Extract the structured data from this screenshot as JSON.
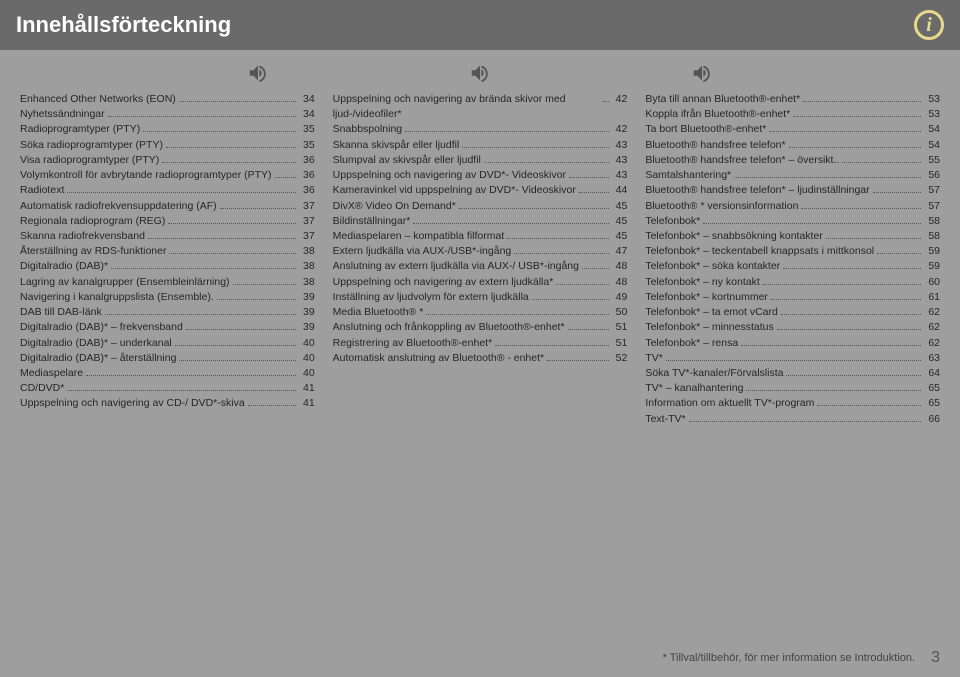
{
  "header": {
    "title": "Innehållsförteckning"
  },
  "columns": [
    [
      {
        "label": "Enhanced Other Networks (EON)",
        "page": "34"
      },
      {
        "label": "Nyhetssändningar",
        "page": "34"
      },
      {
        "label": "Radioprogramtyper (PTY)",
        "page": "35"
      },
      {
        "label": "Söka radioprogramtyper (PTY)",
        "page": "35"
      },
      {
        "label": "Visa radioprogramtyper (PTY)",
        "page": "36"
      },
      {
        "label": "Volymkontroll för avbrytande radioprogramtyper (PTY)",
        "page": "36"
      },
      {
        "label": "Radiotext",
        "page": "36"
      },
      {
        "label": "Automatisk radiofrekvensuppdatering (AF)",
        "page": "37"
      },
      {
        "label": "Regionala radioprogram (REG)",
        "page": "37"
      },
      {
        "label": "Skanna radiofrekvensband",
        "page": "37"
      },
      {
        "label": "Återställning av RDS-funktioner",
        "page": "38"
      },
      {
        "label": "Digitalradio (DAB)*",
        "page": "38"
      },
      {
        "label": "Lagring av kanalgrupper (Ensembleinlärning)",
        "page": "38"
      },
      {
        "label": "Navigering i kanalgruppslista (Ensemble).",
        "page": "39"
      },
      {
        "label": "DAB till DAB-länk",
        "page": "39"
      },
      {
        "label": "Digitalradio (DAB)* – frekvensband",
        "page": "39"
      },
      {
        "label": "Digitalradio (DAB)* – underkanal",
        "page": "40"
      },
      {
        "label": "Digitalradio (DAB)* – återställning",
        "page": "40"
      },
      {
        "label": "Mediaspelare",
        "page": "40"
      },
      {
        "label": "CD/DVD*",
        "page": "41"
      },
      {
        "label": "Uppspelning och navigering av CD-/ DVD*-skiva",
        "page": "41"
      }
    ],
    [
      {
        "label": "Uppspelning och navigering av brända skivor med ljud-/videofiler*",
        "page": "42"
      },
      {
        "label": "Snabbspolning",
        "page": "42"
      },
      {
        "label": "Skanna skivspår eller ljudfil",
        "page": "43"
      },
      {
        "label": "Slumpval av skivspår eller ljudfil",
        "page": "43"
      },
      {
        "label": "Uppspelning och navigering av DVD*- Videoskivor",
        "page": "43"
      },
      {
        "label": "Kameravinkel vid uppspelning av DVD*- Videoskivor",
        "page": "44"
      },
      {
        "label": "DivX® Video On Demand*",
        "page": "45"
      },
      {
        "label": "Bildinställningar*",
        "page": "45"
      },
      {
        "label": "Mediaspelaren – kompatibla filformat",
        "page": "45"
      },
      {
        "label": "Extern ljudkälla via AUX-/USB*-ingång",
        "page": "47"
      },
      {
        "label": "Anslutning av extern ljudkälla via AUX-/ USB*-ingång",
        "page": "48"
      },
      {
        "label": "Uppspelning och navigering av extern ljudkälla*",
        "page": "48"
      },
      {
        "label": "Inställning av ljudvolym för extern ljudkälla",
        "page": "49"
      },
      {
        "label": "Media Bluetooth® *",
        "page": "50"
      },
      {
        "label": "Anslutning och frånkoppling av Bluetooth®-enhet*",
        "page": "51"
      },
      {
        "label": "Registrering av Bluetooth®-enhet*",
        "page": "51"
      },
      {
        "label": "Automatisk anslutning av Bluetooth® - enhet*",
        "page": "52"
      }
    ],
    [
      {
        "label": "Byta till annan Bluetooth®-enhet*",
        "page": "53"
      },
      {
        "label": "Koppla ifrån Bluetooth®-enhet*",
        "page": "53"
      },
      {
        "label": "Ta bort Bluetooth®-enhet*",
        "page": "54"
      },
      {
        "label": "Bluetooth® handsfree telefon*",
        "page": "54"
      },
      {
        "label": "Bluetooth® handsfree telefon* – översikt..",
        "page": "55"
      },
      {
        "label": "Samtalshantering*",
        "page": "56"
      },
      {
        "label": "Bluetooth® handsfree telefon* – ljudinställningar",
        "page": "57"
      },
      {
        "label": "Bluetooth® * versionsinformation",
        "page": "57"
      },
      {
        "label": "Telefonbok*",
        "page": "58"
      },
      {
        "label": "Telefonbok* – snabbsökning kontakter",
        "page": "58"
      },
      {
        "label": "Telefonbok* – teckentabell knappsats i mittkonsol",
        "page": "59"
      },
      {
        "label": "Telefonbok* – söka kontakter",
        "page": "59"
      },
      {
        "label": "Telefonbok* – ny kontakt",
        "page": "60"
      },
      {
        "label": "Telefonbok* – kortnummer",
        "page": "61"
      },
      {
        "label": "Telefonbok* – ta emot vCard",
        "page": "62"
      },
      {
        "label": "Telefonbok* – minnesstatus",
        "page": "62"
      },
      {
        "label": "Telefonbok* – rensa",
        "page": "62"
      },
      {
        "label": "TV*",
        "page": "63"
      },
      {
        "label": "Söka TV*-kanaler/Förvalslista",
        "page": "64"
      },
      {
        "label": "TV* – kanalhantering",
        "page": "65"
      },
      {
        "label": "Information om aktuellt TV*-program",
        "page": "65"
      },
      {
        "label": "Text-TV*",
        "page": "66"
      }
    ]
  ],
  "footer": {
    "note": "* Tillval/tillbehör, för mer information se Introduktion.",
    "page_number": "3"
  },
  "colors": {
    "page_bg": "#9e9e9e",
    "header_bg": "#6a6a6a",
    "header_text": "#ffffff",
    "icon_color": "#e8d88c",
    "body_text": "#262626"
  }
}
